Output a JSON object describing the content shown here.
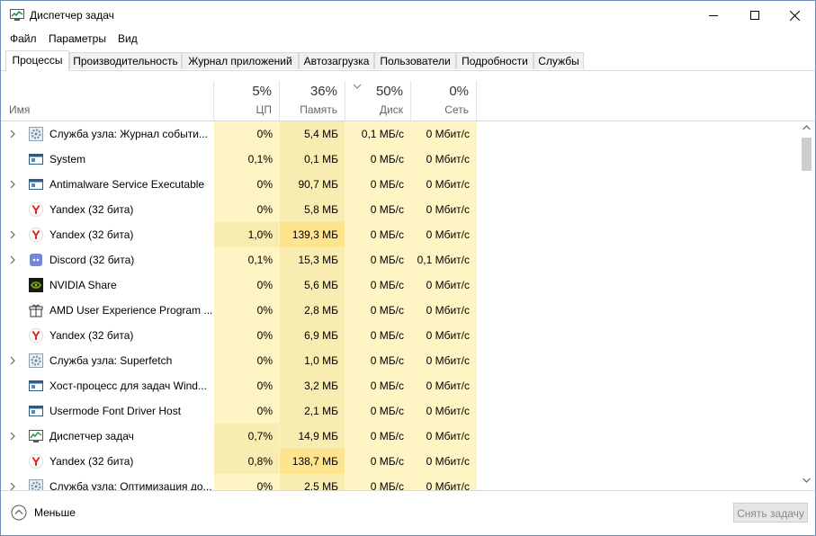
{
  "window": {
    "title": "Диспетчер задач"
  },
  "menu": [
    "Файл",
    "Параметры",
    "Вид"
  ],
  "tabs": [
    "Процессы",
    "Производительность",
    "Журнал приложений",
    "Автозагрузка",
    "Пользователи",
    "Подробности",
    "Службы"
  ],
  "active_tab": "Процессы",
  "columns": {
    "name": "Имя",
    "cpu": {
      "percent": "5%",
      "label": "ЦП"
    },
    "memory": {
      "percent": "36%",
      "label": "Память"
    },
    "disk": {
      "percent": "50%",
      "label": "Диск",
      "sorted": true
    },
    "network": {
      "percent": "0%",
      "label": "Сеть"
    }
  },
  "processes": [
    {
      "name": "Служба узла: Журнал событи...",
      "icon": "service-gear-icon",
      "expandable": true,
      "cpu": "0%",
      "memory": "5,4 МБ",
      "disk": "0,1 МБ/с",
      "network": "0 Мбит/с"
    },
    {
      "name": "System",
      "icon": "window-app-icon",
      "expandable": false,
      "cpu": "0,1%",
      "memory": "0,1 МБ",
      "disk": "0 МБ/с",
      "network": "0 Мбит/с"
    },
    {
      "name": "Antimalware Service Executable",
      "icon": "window-app-icon",
      "expandable": true,
      "cpu": "0%",
      "memory": "90,7 МБ",
      "disk": "0 МБ/с",
      "network": "0 Мбит/с"
    },
    {
      "name": "Yandex (32 бита)",
      "icon": "yandex-icon",
      "expandable": false,
      "cpu": "0%",
      "memory": "5,8 МБ",
      "disk": "0 МБ/с",
      "network": "0 Мбит/с"
    },
    {
      "name": "Yandex (32 бита)",
      "icon": "yandex-icon",
      "expandable": true,
      "cpu": "1,0%",
      "memory": "139,3 МБ",
      "disk": "0 МБ/с",
      "network": "0 Мбит/с"
    },
    {
      "name": "Discord (32 бита)",
      "icon": "discord-icon",
      "expandable": true,
      "cpu": "0,1%",
      "memory": "15,3 МБ",
      "disk": "0 МБ/с",
      "network": "0,1 Мбит/с"
    },
    {
      "name": "NVIDIA Share",
      "icon": "nvidia-icon",
      "expandable": false,
      "cpu": "0%",
      "memory": "5,6 МБ",
      "disk": "0 МБ/с",
      "network": "0 Мбит/с"
    },
    {
      "name": "AMD User Experience Program ...",
      "icon": "amd-gift-icon",
      "expandable": false,
      "cpu": "0%",
      "memory": "2,8 МБ",
      "disk": "0 МБ/с",
      "network": "0 Мбит/с"
    },
    {
      "name": "Yandex (32 бита)",
      "icon": "yandex-icon",
      "expandable": false,
      "cpu": "0%",
      "memory": "6,9 МБ",
      "disk": "0 МБ/с",
      "network": "0 Мбит/с"
    },
    {
      "name": "Служба узла: Superfetch",
      "icon": "service-gear-icon",
      "expandable": true,
      "cpu": "0%",
      "memory": "1,0 МБ",
      "disk": "0 МБ/с",
      "network": "0 Мбит/с"
    },
    {
      "name": "Хост-процесс для задач Wind...",
      "icon": "window-app-icon",
      "expandable": false,
      "cpu": "0%",
      "memory": "3,2 МБ",
      "disk": "0 МБ/с",
      "network": "0 Мбит/с"
    },
    {
      "name": "Usermode Font Driver Host",
      "icon": "window-app-icon",
      "expandable": false,
      "cpu": "0%",
      "memory": "2,1 МБ",
      "disk": "0 МБ/с",
      "network": "0 Мбит/с"
    },
    {
      "name": "Диспетчер задач",
      "icon": "task-manager-icon",
      "expandable": true,
      "cpu": "0,7%",
      "memory": "14,9 МБ",
      "disk": "0 МБ/с",
      "network": "0 Мбит/с"
    },
    {
      "name": "Yandex (32 бита)",
      "icon": "yandex-icon",
      "expandable": false,
      "cpu": "0,8%",
      "memory": "138,7 МБ",
      "disk": "0 МБ/с",
      "network": "0 Мбит/с"
    },
    {
      "name": "Служба узла: Оптимизация до...",
      "icon": "service-gear-icon",
      "expandable": true,
      "cpu": "0%",
      "memory": "2,5 МБ",
      "disk": "0 МБ/с",
      "network": "0 Мбит/с"
    }
  ],
  "heat_colors": {
    "low": "#fff4c4",
    "medium": "#f9ecb0",
    "high": "#ffe490"
  },
  "footer": {
    "less_label": "Меньше",
    "end_task_label": "Снять задачу"
  }
}
